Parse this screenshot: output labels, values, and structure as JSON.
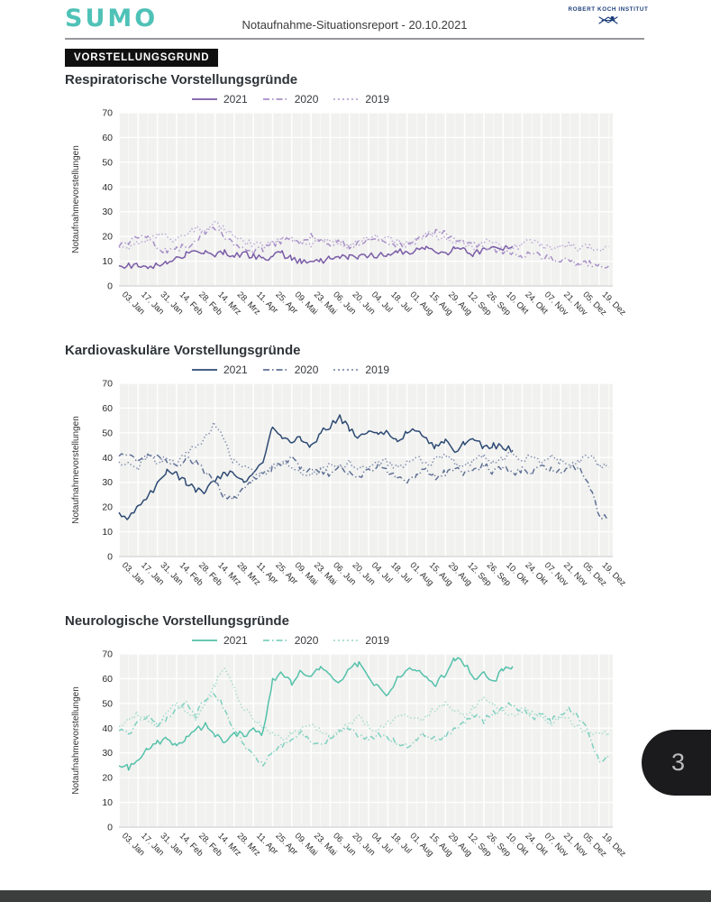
{
  "header": {
    "logo_text": "SUMO",
    "title": "Notaufnahme-Situationsreport - 20.10.2021",
    "org": "ROBERT KOCH INSTITUT"
  },
  "section_badge": "VORSTELLUNGSGRUND",
  "page_number": "3",
  "colors": {
    "logo_teal": "#4fc2b7",
    "rki_navy": "#1d3e7a",
    "plot_background": "#f1f1ef",
    "badge_black": "#101010",
    "bottom_bar": "#3c3d3d"
  },
  "chart_data": [
    {
      "type": "line",
      "title": "Respiratorische Vorstellungsgründe",
      "ylabel": "Notaufnahmevorstellungen",
      "ylim": [
        0,
        70
      ],
      "yticks": [
        0,
        10,
        20,
        30,
        40,
        50,
        60,
        70
      ],
      "grid": true,
      "legend_position": "top",
      "xtick_days": [
        3,
        17,
        31,
        45,
        59,
        73,
        87,
        101,
        115,
        129,
        143,
        157,
        171,
        185,
        199,
        213,
        227,
        241,
        255,
        269,
        283,
        297,
        311,
        325,
        339,
        353
      ],
      "xticklabels": [
        "03. Jan",
        "17. Jan",
        "31. Jan",
        "14. Feb",
        "28. Feb",
        "14. Mrz",
        "28. Mrz",
        "11. Apr",
        "25. Apr",
        "09. Mai",
        "23. Mai",
        "06. Jun",
        "20. Jun",
        "04. Jul",
        "18. Jul",
        "01. Aug",
        "15. Aug",
        "29. Aug",
        "12. Sep",
        "26. Sep",
        "10. Okt",
        "24. Okt",
        "07. Nov",
        "21. Nov",
        "05. Dez",
        "19. Dez"
      ],
      "series": [
        {
          "name": "2021",
          "style": "solid",
          "color": "#7a5ca7",
          "start_day": 3,
          "step_days": 7,
          "values": [
            8,
            8,
            8,
            8,
            8,
            9,
            11,
            13,
            15,
            14,
            13,
            14,
            12,
            13,
            12,
            11,
            12,
            13,
            11,
            10,
            9,
            10,
            11,
            12,
            12,
            11,
            13,
            12,
            13,
            14,
            13,
            15,
            16,
            14,
            13,
            15,
            14,
            13,
            15,
            16,
            15,
            16
          ]
        },
        {
          "name": "2020",
          "style": "dashdot",
          "color": "#a78fc7",
          "start_day": 3,
          "step_days": 7,
          "values": [
            16,
            18,
            20,
            19,
            15,
            14,
            15,
            16,
            18,
            22,
            24,
            20,
            17,
            15,
            14,
            15,
            17,
            18,
            19,
            18,
            20,
            19,
            17,
            18,
            16,
            17,
            19,
            18,
            17,
            16,
            17,
            18,
            20,
            22,
            21,
            19,
            18,
            17,
            16,
            15,
            14,
            13,
            12,
            13,
            12,
            11,
            10,
            10,
            9,
            9,
            8,
            8
          ]
        },
        {
          "name": "2019",
          "style": "dotted",
          "color": "#b9a7d4",
          "start_day": 3,
          "step_days": 7,
          "values": [
            16,
            15,
            17,
            19,
            21,
            20,
            18,
            21,
            23,
            22,
            25,
            23,
            20,
            18,
            17,
            16,
            18,
            19,
            20,
            18,
            17,
            19,
            18,
            17,
            16,
            18,
            19,
            20,
            19,
            18,
            17,
            19,
            21,
            20,
            19,
            18,
            17,
            16,
            18,
            17,
            16,
            15,
            17,
            18,
            16,
            15,
            16,
            17,
            15,
            16,
            15,
            16
          ]
        }
      ]
    },
    {
      "type": "line",
      "title": "Kardiovaskuläre Vorstellungsgründe",
      "ylabel": "Notaufnahmevorstellungen",
      "ylim": [
        0,
        70
      ],
      "yticks": [
        0,
        10,
        20,
        30,
        40,
        50,
        60,
        70
      ],
      "grid": true,
      "legend_position": "top",
      "xtick_days": [
        3,
        17,
        31,
        45,
        59,
        73,
        87,
        101,
        115,
        129,
        143,
        157,
        171,
        185,
        199,
        213,
        227,
        241,
        255,
        269,
        283,
        297,
        311,
        325,
        339,
        353
      ],
      "xticklabels": [
        "03. Jan",
        "17. Jan",
        "31. Jan",
        "14. Feb",
        "28. Feb",
        "14. Mrz",
        "28. Mrz",
        "11. Apr",
        "25. Apr",
        "09. Mai",
        "23. Mai",
        "06. Jun",
        "20. Jun",
        "04. Jul",
        "18. Jul",
        "01. Aug",
        "15. Aug",
        "29. Aug",
        "12. Sep",
        "26. Sep",
        "10. Okt",
        "24. Okt",
        "07. Nov",
        "21. Nov",
        "05. Dez",
        "19. Dez"
      ],
      "series": [
        {
          "name": "2021",
          "style": "solid",
          "color": "#2d4a73",
          "start_day": 3,
          "step_days": 7,
          "values": [
            17,
            16,
            20,
            24,
            29,
            34,
            33,
            30,
            27,
            26,
            31,
            34,
            33,
            30,
            35,
            38,
            52,
            49,
            46,
            48,
            44,
            50,
            53,
            56,
            52,
            48,
            50,
            49,
            51,
            46,
            50,
            51,
            48,
            44,
            47,
            42,
            46,
            48,
            44,
            45,
            44,
            43
          ]
        },
        {
          "name": "2020",
          "style": "dashdot",
          "color": "#5f7095",
          "start_day": 3,
          "step_days": 7,
          "values": [
            40,
            41,
            38,
            42,
            40,
            38,
            36,
            40,
            38,
            34,
            30,
            24,
            23,
            28,
            31,
            33,
            36,
            38,
            40,
            36,
            34,
            35,
            33,
            36,
            34,
            32,
            35,
            37,
            34,
            32,
            30,
            33,
            35,
            32,
            34,
            36,
            33,
            35,
            37,
            34,
            36,
            33,
            35,
            34,
            36,
            35,
            34,
            37,
            35,
            28,
            17,
            15
          ]
        },
        {
          "name": "2019",
          "style": "dotted",
          "color": "#7f8dad",
          "start_day": 3,
          "step_days": 7,
          "values": [
            37,
            39,
            36,
            41,
            38,
            40,
            37,
            42,
            44,
            48,
            54,
            46,
            38,
            36,
            35,
            33,
            36,
            38,
            36,
            34,
            33,
            35,
            37,
            36,
            38,
            35,
            37,
            39,
            38,
            36,
            38,
            40,
            37,
            39,
            41,
            38,
            36,
            39,
            41,
            38,
            40,
            42,
            39,
            41,
            38,
            40,
            38,
            36,
            39,
            41,
            37,
            36
          ]
        }
      ]
    },
    {
      "type": "line",
      "title": "Neurologische Vorstellungsgründe",
      "ylabel": "Notaufnahmevorstellungen",
      "ylim": [
        0,
        70
      ],
      "yticks": [
        0,
        10,
        20,
        30,
        40,
        50,
        60,
        70
      ],
      "grid": true,
      "legend_position": "top",
      "xtick_days": [
        3,
        17,
        31,
        45,
        59,
        73,
        87,
        101,
        115,
        129,
        143,
        157,
        171,
        185,
        199,
        213,
        227,
        241,
        255,
        269,
        283,
        297,
        311,
        325,
        339,
        353
      ],
      "xticklabels": [
        "03. Jan",
        "17. Jan",
        "31. Jan",
        "14. Feb",
        "28. Feb",
        "14. Mrz",
        "28. Mrz",
        "11. Apr",
        "25. Apr",
        "09. Mai",
        "23. Mai",
        "06. Jun",
        "20. Jun",
        "04. Jul",
        "18. Jul",
        "01. Aug",
        "15. Aug",
        "29. Aug",
        "12. Sep",
        "26. Sep",
        "10. Okt",
        "24. Okt",
        "07. Nov",
        "21. Nov",
        "05. Dez",
        "19. Dez"
      ],
      "series": [
        {
          "name": "2021",
          "style": "solid",
          "color": "#54c1aa",
          "start_day": 3,
          "step_days": 7,
          "values": [
            26,
            24,
            28,
            31,
            34,
            36,
            33,
            36,
            39,
            41,
            37,
            35,
            38,
            37,
            40,
            38,
            60,
            62,
            58,
            63,
            60,
            65,
            62,
            58,
            64,
            66,
            61,
            56,
            53,
            60,
            64,
            63,
            60,
            58,
            62,
            68,
            66,
            60,
            63,
            58,
            64,
            65
          ]
        },
        {
          "name": "2020",
          "style": "dashdot",
          "color": "#7ed0bf",
          "start_day": 3,
          "step_days": 7,
          "values": [
            40,
            38,
            42,
            45,
            41,
            44,
            47,
            50,
            45,
            52,
            54,
            48,
            40,
            34,
            28,
            26,
            30,
            33,
            36,
            38,
            35,
            33,
            36,
            38,
            40,
            37,
            35,
            38,
            36,
            34,
            33,
            36,
            38,
            35,
            37,
            40,
            42,
            45,
            43,
            46,
            48,
            50,
            47,
            44,
            46,
            43,
            45,
            48,
            44,
            38,
            26,
            28
          ]
        },
        {
          "name": "2019",
          "style": "dotted",
          "color": "#a2dccd",
          "start_day": 3,
          "step_days": 7,
          "values": [
            41,
            44,
            46,
            43,
            40,
            46,
            50,
            47,
            44,
            50,
            58,
            65,
            56,
            48,
            44,
            40,
            38,
            36,
            38,
            40,
            42,
            39,
            37,
            40,
            42,
            44,
            41,
            39,
            42,
            44,
            46,
            43,
            45,
            48,
            50,
            47,
            45,
            49,
            52,
            50,
            47,
            45,
            48,
            46,
            44,
            42,
            45,
            43,
            40,
            38,
            37,
            38
          ]
        }
      ]
    }
  ]
}
